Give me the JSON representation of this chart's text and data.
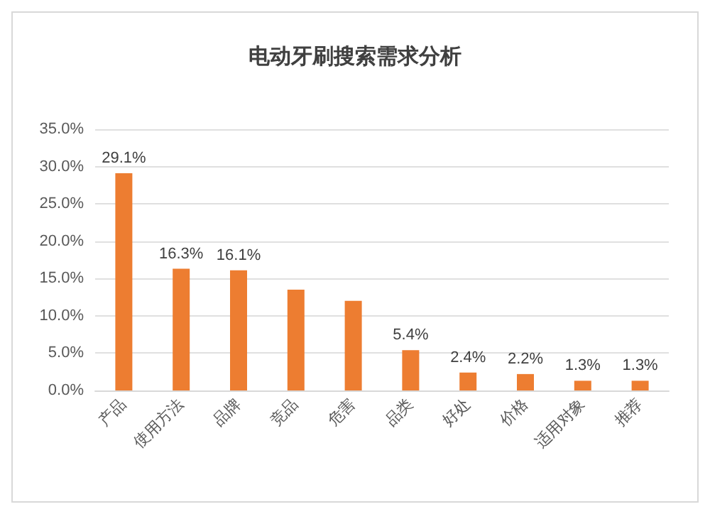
{
  "chart_data": {
    "type": "bar",
    "title": "电动牙刷搜索需求分析",
    "categories": [
      "产品",
      "使用方法",
      "品牌",
      "竞品",
      "危害",
      "品类",
      "好处",
      "价格",
      "适用对象",
      "推荐"
    ],
    "values": [
      29.1,
      16.3,
      16.1,
      13.5,
      12.0,
      5.4,
      2.4,
      2.2,
      1.3,
      1.3
    ],
    "value_labels": [
      "29.1%",
      "16.3%",
      "16.1%",
      null,
      null,
      "5.4%",
      "2.4%",
      "2.2%",
      "1.3%",
      "1.3%"
    ],
    "color": "#ed7d31",
    "ylim": [
      0,
      35
    ],
    "yticks": [
      {
        "value": 0,
        "label": "0.0%"
      },
      {
        "value": 5,
        "label": "5.0%"
      },
      {
        "value": 10,
        "label": "10.0%"
      },
      {
        "value": 15,
        "label": "15.0%"
      },
      {
        "value": 20,
        "label": "20.0%"
      },
      {
        "value": 25,
        "label": "25.0%"
      },
      {
        "value": 30,
        "label": "30.0%"
      },
      {
        "value": 35,
        "label": "35.0%"
      }
    ],
    "grid": "y"
  }
}
